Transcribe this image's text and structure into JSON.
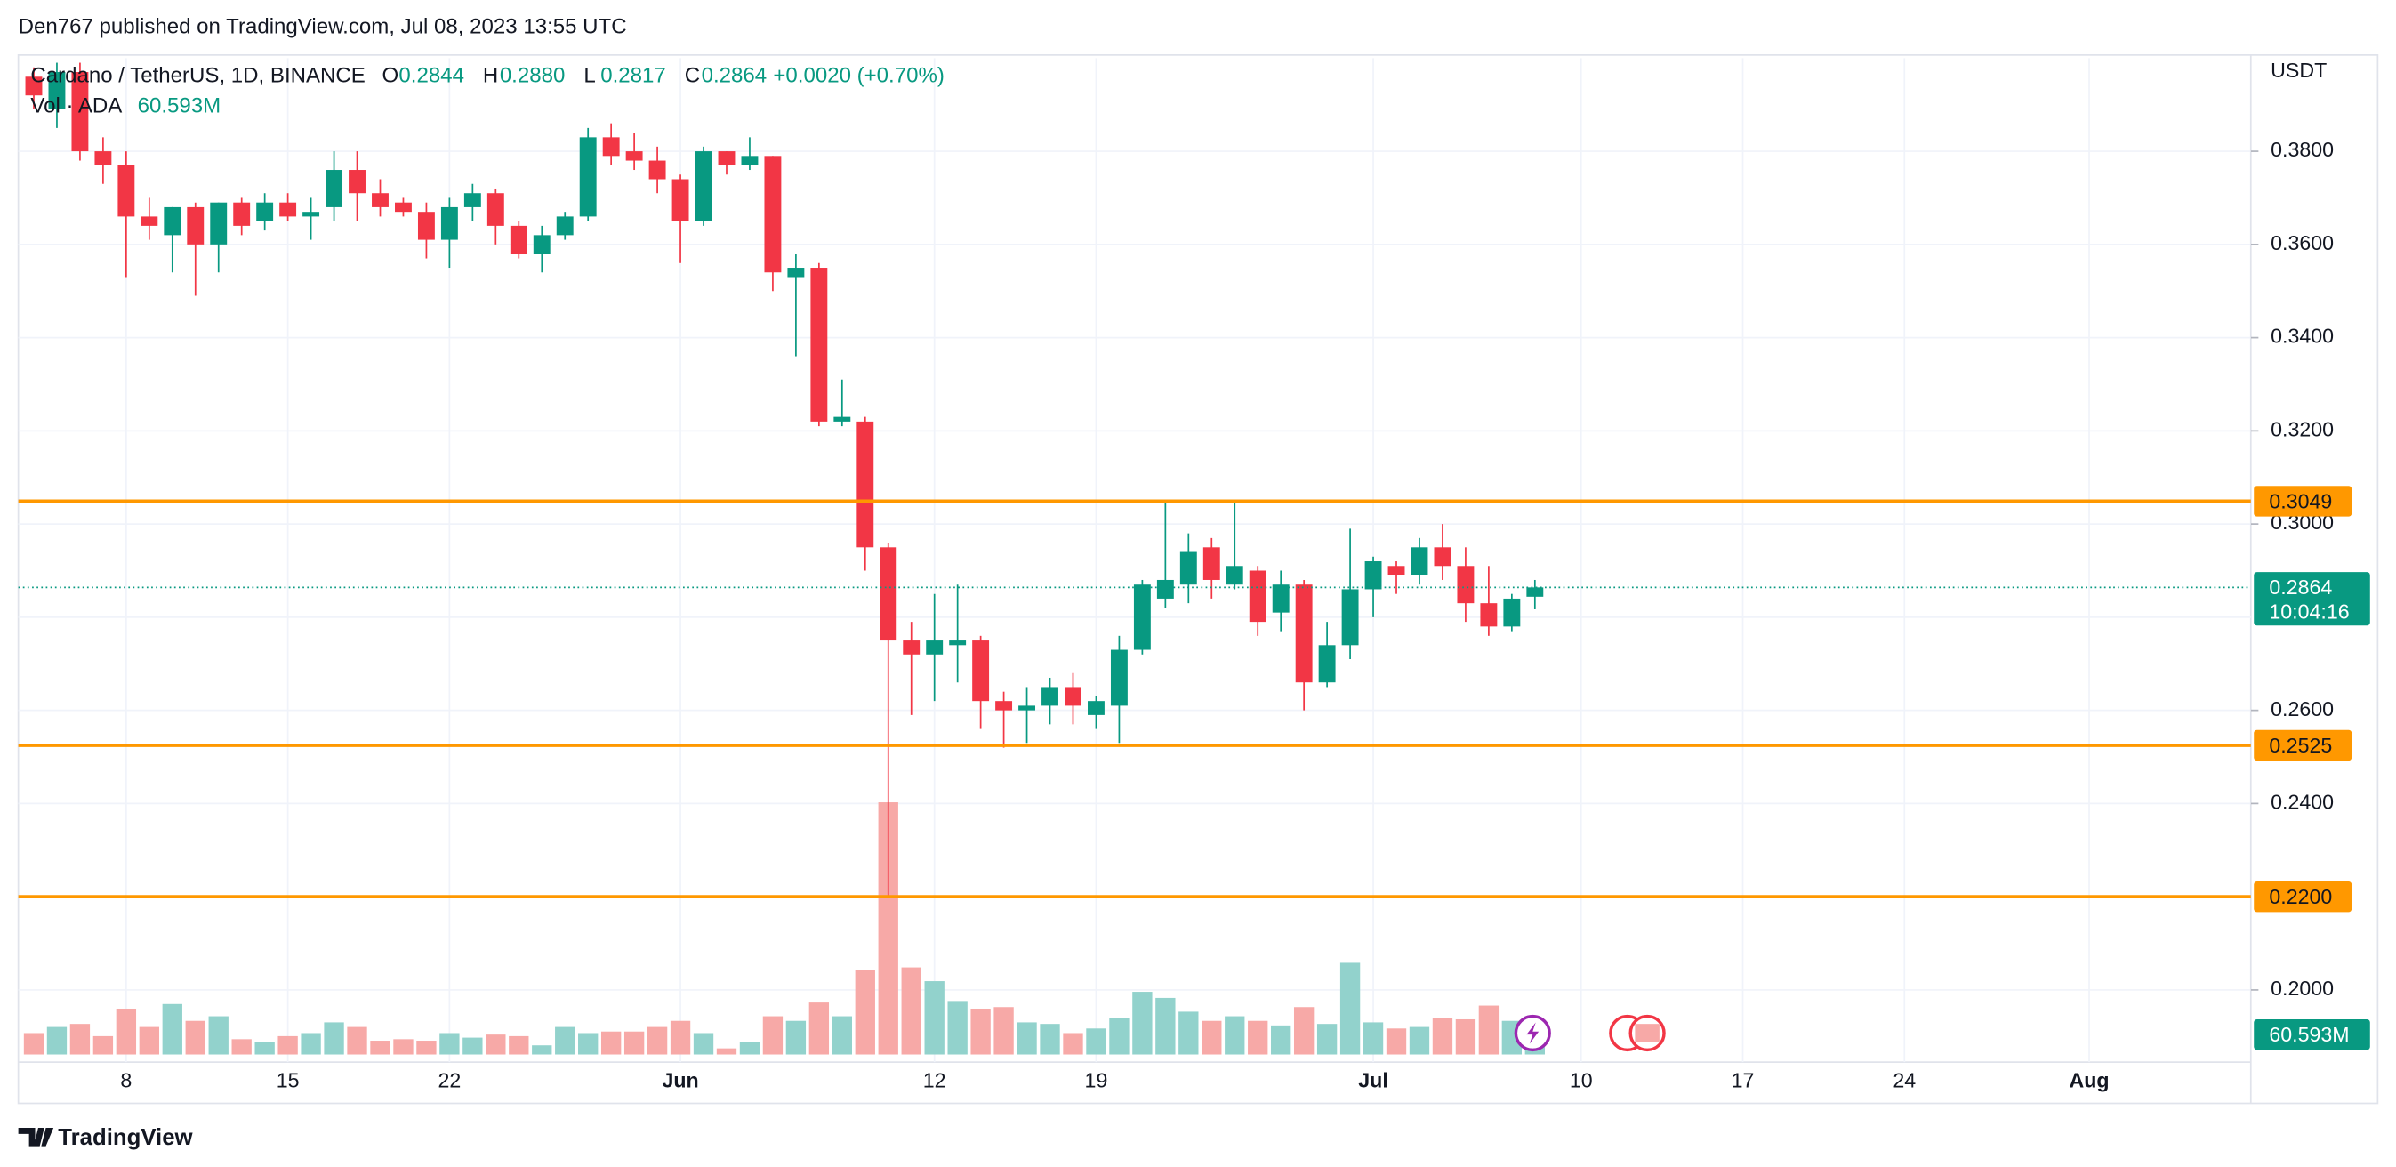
{
  "header": {
    "published": "Den767 published on TradingView.com, Jul 08, 2023 13:55 UTC",
    "brand": "TradingView"
  },
  "chart_data": {
    "type": "candlestick",
    "legend": {
      "symbol": "Cardano / TetherUS, 1D, BINANCE",
      "letters": [
        "O",
        "H",
        "L",
        "C"
      ],
      "ohlc_labels": [
        "0.2844",
        "0.2880",
        "0.2817",
        "0.2864"
      ],
      "change": "+0.0020 (+0.70%)"
    },
    "currency": "USDT",
    "countdown": "10:04:16",
    "x": [
      "05-04",
      "05-05",
      "05-06",
      "05-07",
      "05-08",
      "05-09",
      "05-10",
      "05-11",
      "05-12",
      "05-13",
      "05-14",
      "05-15",
      "05-16",
      "05-17",
      "05-18",
      "05-19",
      "05-20",
      "05-21",
      "05-22",
      "05-23",
      "05-24",
      "05-25",
      "05-26",
      "05-27",
      "05-28",
      "05-29",
      "05-30",
      "05-31",
      "06-01",
      "06-02",
      "06-03",
      "06-04",
      "06-05",
      "06-06",
      "06-07",
      "06-08",
      "06-09",
      "06-10",
      "06-11",
      "06-12",
      "06-13",
      "06-14",
      "06-15",
      "06-16",
      "06-17",
      "06-18",
      "06-19",
      "06-20",
      "06-21",
      "06-22",
      "06-23",
      "06-24",
      "06-25",
      "06-26",
      "06-27",
      "06-28",
      "06-29",
      "06-30",
      "07-01",
      "07-02",
      "07-03",
      "07-04",
      "07-05",
      "07-06",
      "07-07",
      "07-08"
    ],
    "open": [
      0.396,
      0.389,
      0.397,
      0.38,
      0.377,
      0.366,
      0.362,
      0.368,
      0.36,
      0.369,
      0.365,
      0.369,
      0.366,
      0.368,
      0.376,
      0.371,
      0.369,
      0.367,
      0.361,
      0.368,
      0.371,
      0.364,
      0.358,
      0.362,
      0.366,
      0.383,
      0.38,
      0.378,
      0.374,
      0.365,
      0.38,
      0.377,
      0.379,
      0.353,
      0.355,
      0.322,
      0.322,
      0.295,
      0.275,
      0.272,
      0.274,
      0.275,
      0.262,
      0.26,
      0.261,
      0.265,
      0.259,
      0.261,
      0.273,
      0.284,
      0.287,
      0.295,
      0.287,
      0.29,
      0.281,
      0.287,
      0.266,
      0.274,
      0.286,
      0.291,
      0.289,
      0.295,
      0.291,
      0.283,
      0.278,
      0.2844
    ],
    "high": [
      0.398,
      0.399,
      0.399,
      0.383,
      0.38,
      0.37,
      0.368,
      0.369,
      0.369,
      0.37,
      0.371,
      0.371,
      0.37,
      0.38,
      0.38,
      0.374,
      0.37,
      0.369,
      0.37,
      0.373,
      0.372,
      0.365,
      0.364,
      0.367,
      0.385,
      0.386,
      0.384,
      0.381,
      0.375,
      0.381,
      0.38,
      0.383,
      0.379,
      0.358,
      0.356,
      0.331,
      0.323,
      0.296,
      0.279,
      0.285,
      0.287,
      0.276,
      0.264,
      0.265,
      0.267,
      0.268,
      0.263,
      0.276,
      0.288,
      0.305,
      0.298,
      0.297,
      0.305,
      0.291,
      0.29,
      0.288,
      0.279,
      0.299,
      0.293,
      0.292,
      0.297,
      0.3,
      0.295,
      0.291,
      0.285,
      0.288
    ],
    "low": [
      0.389,
      0.385,
      0.378,
      0.373,
      0.353,
      0.361,
      0.354,
      0.349,
      0.354,
      0.362,
      0.363,
      0.365,
      0.361,
      0.365,
      0.365,
      0.366,
      0.366,
      0.357,
      0.355,
      0.365,
      0.36,
      0.357,
      0.354,
      0.361,
      0.365,
      0.377,
      0.376,
      0.371,
      0.356,
      0.364,
      0.375,
      0.376,
      0.35,
      0.336,
      0.321,
      0.321,
      0.29,
      0.22,
      0.259,
      0.262,
      0.266,
      0.256,
      0.252,
      0.253,
      0.257,
      0.257,
      0.256,
      0.253,
      0.272,
      0.282,
      0.283,
      0.284,
      0.286,
      0.276,
      0.277,
      0.26,
      0.265,
      0.271,
      0.28,
      0.285,
      0.287,
      0.288,
      0.279,
      0.276,
      0.277,
      0.2817
    ],
    "close": [
      0.392,
      0.397,
      0.38,
      0.377,
      0.366,
      0.364,
      0.368,
      0.36,
      0.369,
      0.364,
      0.369,
      0.366,
      0.367,
      0.376,
      0.371,
      0.368,
      0.367,
      0.361,
      0.368,
      0.371,
      0.364,
      0.358,
      0.362,
      0.366,
      0.383,
      0.379,
      0.378,
      0.374,
      0.365,
      0.38,
      0.377,
      0.379,
      0.354,
      0.355,
      0.322,
      0.323,
      0.295,
      0.275,
      0.272,
      0.275,
      0.275,
      0.262,
      0.26,
      0.261,
      0.265,
      0.261,
      0.262,
      0.273,
      0.287,
      0.288,
      0.294,
      0.288,
      0.291,
      0.279,
      0.287,
      0.266,
      0.274,
      0.286,
      0.292,
      0.289,
      0.295,
      0.291,
      0.283,
      0.278,
      0.284,
      0.2864
    ],
    "volume": {
      "name": "Vol · ADA",
      "last_label": "60.593M",
      "values": [
        38.5,
        49.5,
        55,
        33,
        82.5,
        49.5,
        90.8,
        60.5,
        68.8,
        27.5,
        22,
        33,
        38.5,
        57.8,
        49.5,
        24.8,
        27.5,
        24.8,
        38.5,
        30.3,
        35.8,
        33,
        16.5,
        49.5,
        38.5,
        41.3,
        41.3,
        49.5,
        60.5,
        38.5,
        11,
        22,
        68.8,
        60.5,
        93.5,
        68.8,
        151.3,
        453.8,
        156.8,
        132,
        96.3,
        82.5,
        85.3,
        57.8,
        55,
        38.5,
        46.8,
        66,
        112.8,
        101.8,
        77,
        60.5,
        68.8,
        60.5,
        52.3,
        85.3,
        55,
        165,
        57.8,
        46.8,
        49.5,
        66,
        63.3,
        88,
        60.5,
        60.593
      ]
    },
    "up_color": "#089981",
    "down_color": "#f23645",
    "volume_up_color": "#92d2cc",
    "volume_down_color": "#f7a9a7",
    "levels": [
      {
        "value": 0.3049,
        "label": "0.3049"
      },
      {
        "value": 0.2525,
        "label": "0.2525"
      },
      {
        "value": 0.22,
        "label": "0.2200"
      }
    ],
    "level_color": "#ff9800",
    "ylim": [
      0.1845,
      0.4
    ],
    "yticks": [
      {
        "value": 0.2,
        "label": "0.2000"
      },
      {
        "value": 0.24,
        "label": "0.2400"
      },
      {
        "value": 0.26,
        "label": "0.2600"
      },
      {
        "value": 0.3,
        "label": "0.3000"
      },
      {
        "value": 0.32,
        "label": "0.3200"
      },
      {
        "value": 0.34,
        "label": "0.3400"
      },
      {
        "value": 0.36,
        "label": "0.3600"
      },
      {
        "value": 0.38,
        "label": "0.3800"
      }
    ],
    "grid_yticks": [
      0.22,
      0.28
    ],
    "xlim": [
      "05-03",
      "08-08"
    ],
    "xticks": [
      {
        "value": "05-08",
        "label": "8"
      },
      {
        "value": "05-15",
        "label": "15"
      },
      {
        "value": "05-22",
        "label": "22"
      },
      {
        "value": "06-01",
        "label": "Jun"
      },
      {
        "value": "06-12",
        "label": "12"
      },
      {
        "value": "06-19",
        "label": "19"
      },
      {
        "value": "07-01",
        "label": "Jul"
      },
      {
        "value": "07-10",
        "label": "10"
      },
      {
        "value": "07-17",
        "label": "17"
      },
      {
        "value": "07-24",
        "label": "24"
      },
      {
        "value": "08-01",
        "label": "Aug"
      }
    ],
    "grid": true
  }
}
